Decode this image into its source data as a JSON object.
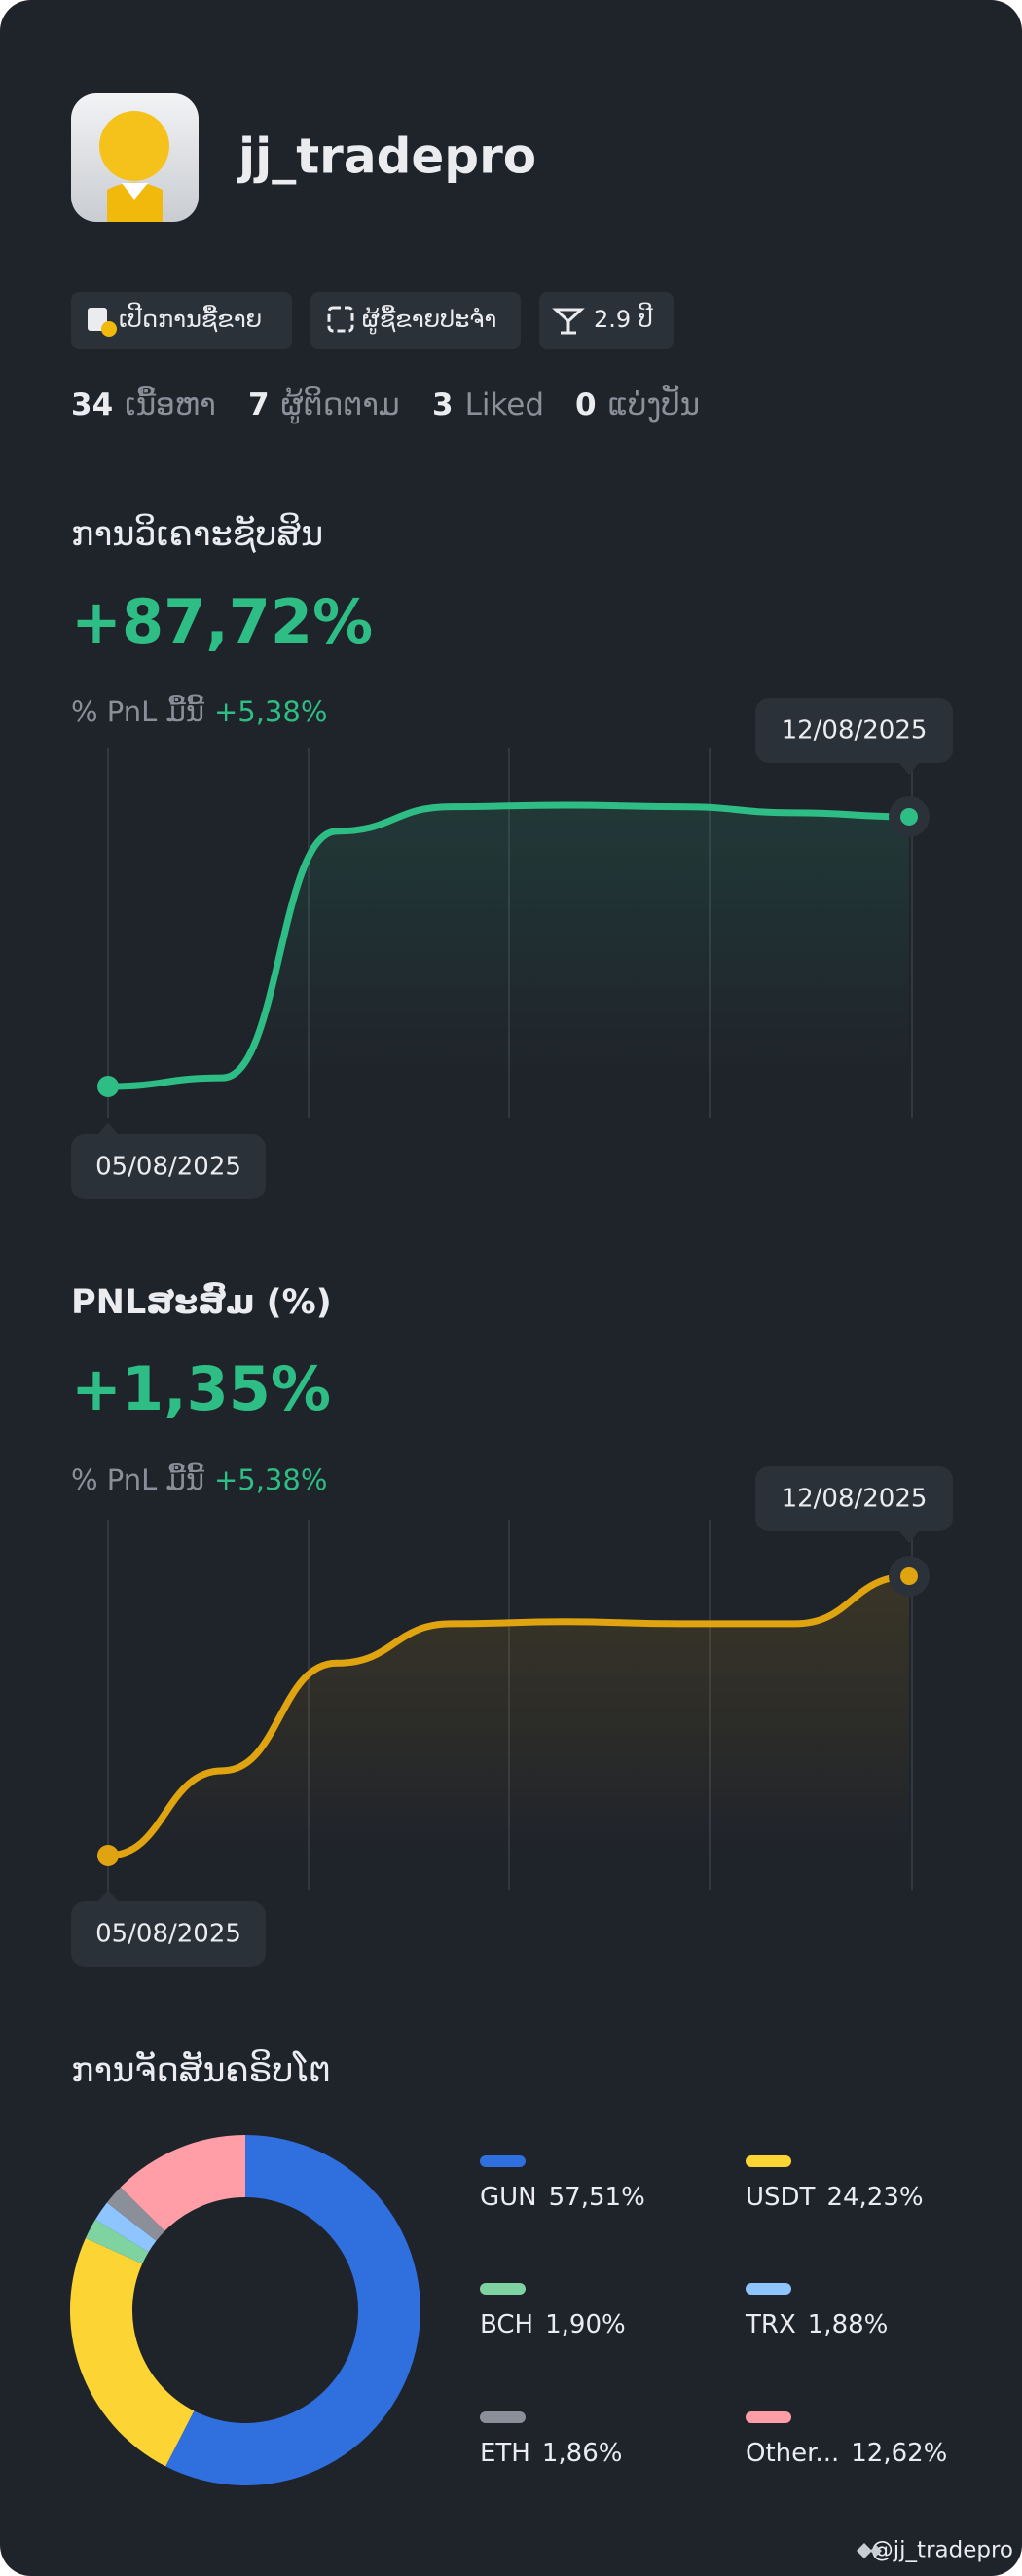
{
  "profile": {
    "username": "jj_tradepro",
    "badges": [
      "ເປີດການຊື້ຂາຍ",
      "ຜູ້ຊື້ຂາຍປະຈໍາ",
      "2.9 ປີ"
    ],
    "stats": [
      {
        "count": 34,
        "label": "ເນື້ອຫາ"
      },
      {
        "count": 7,
        "label": "ຜູ້ຕິດຕາມ"
      },
      {
        "count": 3,
        "label": "Liked"
      },
      {
        "count": 0,
        "label": "ແບ່ງປັນ"
      }
    ]
  },
  "chart_data": [
    {
      "type": "line",
      "title": "ການວິເຄາະຊັບສິນ",
      "headline": "+87,72%",
      "subtitle": "% PnL ມື້ນີ້",
      "subtitle_value": "+5,38%",
      "x": [
        "05/08/2025",
        null,
        null,
        null,
        null,
        null,
        null,
        "12/08/2025"
      ],
      "series": [
        {
          "color": "#2ebd85",
          "values": [
            0,
            2.8,
            83,
            91,
            91.5,
            91,
            89,
            87.72
          ]
        }
      ]
    },
    {
      "type": "line",
      "title": "PNLສະສົມ (%)",
      "headline": "+1,35%",
      "subtitle": "% PnL ມື້ນີ້",
      "subtitle_value": "+5,38%",
      "x": [
        "05/08/2025",
        null,
        null,
        null,
        null,
        null,
        null,
        "12/08/2025"
      ],
      "series": [
        {
          "color": "#e0a411",
          "values": [
            0,
            0.41,
            0.93,
            1.12,
            1.13,
            1.12,
            1.12,
            1.35
          ]
        }
      ]
    },
    {
      "type": "pie",
      "title": "ການຈັດສັນຄຣິບໂຕ",
      "categories": [
        "GUN",
        "USDT",
        "BCH",
        "TRX",
        "ETH",
        "Other..."
      ],
      "values": [
        57.51,
        24.23,
        1.9,
        1.88,
        1.86,
        12.62
      ],
      "value_labels": [
        "57,51%",
        "24,23%",
        "1,90%",
        "1,88%",
        "1,86%",
        "12,62%"
      ],
      "colors": [
        "#2f6fde",
        "#fcd535",
        "#7ed3a1",
        "#8ec5ff",
        "#8a8f99",
        "#ff9ea6"
      ]
    }
  ],
  "footer": "@jj_tradepro"
}
